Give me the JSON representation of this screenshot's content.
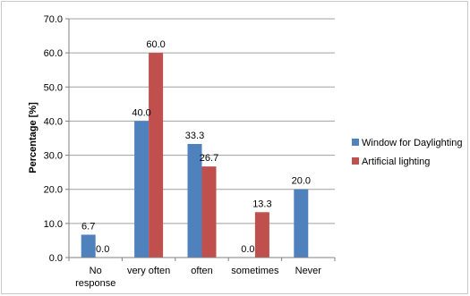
{
  "chart_data": {
    "type": "bar",
    "title": "",
    "xlabel": "",
    "ylabel": "Percentage [%]",
    "ylim": [
      0,
      70
    ],
    "yticks": [
      "0.0",
      "10.0",
      "20.0",
      "30.0",
      "40.0",
      "50.0",
      "60.0",
      "70.0"
    ],
    "grid": true,
    "legend_position": "right",
    "categories": [
      [
        "No",
        "response"
      ],
      [
        "very often"
      ],
      [
        "often"
      ],
      [
        "sometimes"
      ],
      [
        "Never"
      ]
    ],
    "series": [
      {
        "name": "Window for Daylighting",
        "color": "#4F81BD",
        "values": [
          6.7,
          40.0,
          33.3,
          0.0,
          20.0
        ],
        "labels": [
          "6.7",
          "40.0",
          "33.3",
          "0.0",
          "20.0"
        ]
      },
      {
        "name": "Artificial lighting",
        "color": "#C0504D",
        "values": [
          0.0,
          60.0,
          26.7,
          13.3,
          null
        ],
        "labels": [
          "0.0",
          "60.0",
          "26.7",
          "13.3",
          null
        ]
      }
    ]
  }
}
